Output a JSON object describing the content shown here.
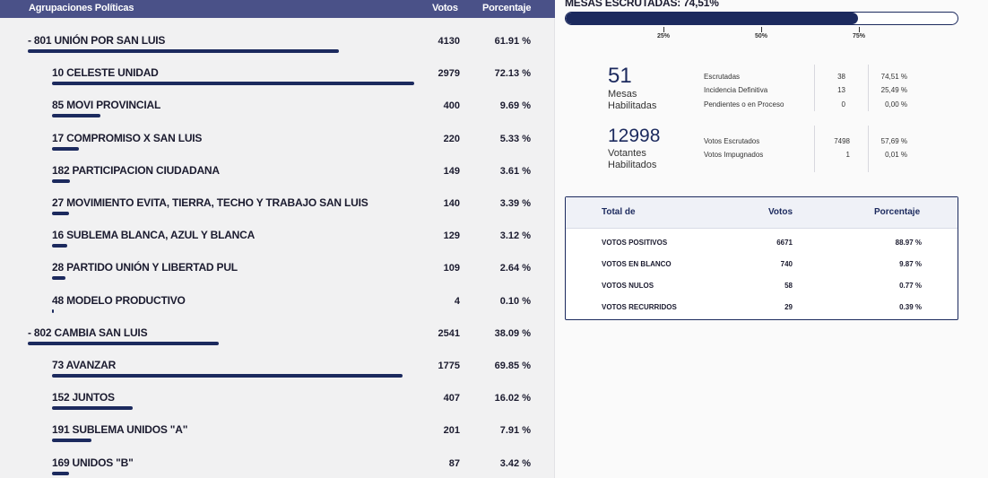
{
  "header": {
    "name": "Agrupaciones Políticas",
    "votes": "Votos",
    "pct": "Porcentaje"
  },
  "rows": [
    {
      "type": "party",
      "name": "-  801 UNIÓN POR SAN LUIS",
      "votes": "4130",
      "pct": "61.91 %",
      "share": 61.91
    },
    {
      "type": "list",
      "name": "10 CELESTE UNIDAD",
      "votes": "2979",
      "pct": "72.13 %",
      "share": 72.13
    },
    {
      "type": "list",
      "name": "85 MOVI PROVINCIAL",
      "votes": "400",
      "pct": "9.69 %",
      "share": 9.69
    },
    {
      "type": "list",
      "name": "17 COMPROMISO X SAN LUIS",
      "votes": "220",
      "pct": "5.33 %",
      "share": 5.33
    },
    {
      "type": "list",
      "name": "182 PARTICIPACION CIUDADANA",
      "votes": "149",
      "pct": "3.61 %",
      "share": 3.61
    },
    {
      "type": "list",
      "name": "27 MOVIMIENTO EVITA, TIERRA, TECHO Y TRABAJO SAN LUIS",
      "votes": "140",
      "pct": "3.39 %",
      "share": 3.39
    },
    {
      "type": "list",
      "name": "16 SUBLEMA BLANCA, AZUL Y BLANCA",
      "votes": "129",
      "pct": "3.12 %",
      "share": 3.12
    },
    {
      "type": "list",
      "name": "28 PARTIDO UNIÓN Y LIBERTAD PUL",
      "votes": "109",
      "pct": "2.64 %",
      "share": 2.64
    },
    {
      "type": "list",
      "name": "48 MODELO PRODUCTIVO",
      "votes": "4",
      "pct": "0.10 %",
      "share": 0.1
    },
    {
      "type": "party",
      "name": "-  802 CAMBIA SAN LUIS",
      "votes": "2541",
      "pct": "38.09 %",
      "share": 38.09
    },
    {
      "type": "list",
      "name": "73 AVANZAR",
      "votes": "1775",
      "pct": "69.85 %",
      "share": 69.85
    },
    {
      "type": "list",
      "name": "152 JUNTOS",
      "votes": "407",
      "pct": "16.02 %",
      "share": 16.02
    },
    {
      "type": "list",
      "name": "191 SUBLEMA UNIDOS \"A\"",
      "votes": "201",
      "pct": "7.91 %",
      "share": 7.91
    },
    {
      "type": "list",
      "name": "169 UNIDOS \"B\"",
      "votes": "87",
      "pct": "3.42 %",
      "share": 3.42
    }
  ],
  "mesas": {
    "title": "MESAS ESCRUTADAS: 74,51%",
    "progress": 74.51,
    "ticks": [
      "25%",
      "50%",
      "75%"
    ],
    "habilitadas_count": "51",
    "habilitadas_label": [
      "Mesas",
      "Habilitadas"
    ],
    "stats": [
      {
        "label": "Escrutadas",
        "count": "38",
        "pct": "74,51 %"
      },
      {
        "label": "Incidencia Definitiva",
        "count": "13",
        "pct": "25,49 %"
      },
      {
        "label": "Pendientes o en Proceso",
        "count": "0",
        "pct": "0,00 %"
      }
    ]
  },
  "votantes": {
    "count": "12998",
    "label": [
      "Votantes",
      "Habilitados"
    ],
    "stats": [
      {
        "label": "Votos Escrutados",
        "count": "7498",
        "pct": "57,69 %"
      },
      {
        "label": "Votos Impugnados",
        "count": "1",
        "pct": "0,01 %"
      }
    ]
  },
  "totals": {
    "headers": {
      "name": "Total de",
      "votes": "Votos",
      "pct": "Porcentaje"
    },
    "rows": [
      {
        "name": "VOTOS POSITIVOS",
        "votes": "6671",
        "pct": "88.97 %"
      },
      {
        "name": "VOTOS EN BLANCO",
        "votes": "740",
        "pct": "9.87 %"
      },
      {
        "name": "VOTOS NULOS",
        "votes": "58",
        "pct": "0.77 %"
      },
      {
        "name": "VOTOS RECURRIDOS",
        "votes": "29",
        "pct": "0.39 %"
      }
    ]
  },
  "colors": {
    "header_bg": "#4a5188",
    "bar": "#1c2a5e",
    "accent": "#1c2a5e"
  }
}
